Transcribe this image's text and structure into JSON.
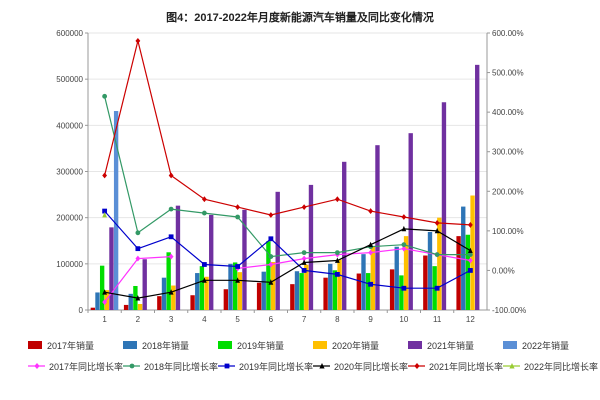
{
  "chart_data": {
    "title": "图4：2017-2022年月度新能源汽车销量及同比变化情况",
    "type": "bar+line",
    "categories": [
      "1",
      "2",
      "3",
      "4",
      "5",
      "6",
      "7",
      "8",
      "9",
      "10",
      "11",
      "12"
    ],
    "y_left": {
      "min": 0,
      "max": 600000,
      "ticks": [
        0,
        100000,
        200000,
        300000,
        400000,
        500000,
        600000
      ],
      "tick_labels": [
        "0",
        "100000",
        "200000",
        "300000",
        "400000",
        "500000",
        "600000"
      ]
    },
    "y_right": {
      "min": -100,
      "max": 600,
      "ticks": [
        -100,
        0,
        100,
        200,
        300,
        400,
        500,
        600
      ],
      "tick_labels": [
        "-100.00%",
        "0.00%",
        "100.00%",
        "200.00%",
        "300.00%",
        "400.00%",
        "500.00%",
        "600.00%"
      ]
    },
    "bar_series": [
      {
        "name": "2017年销量",
        "color": "#c00000",
        "values": [
          5000,
          11000,
          30000,
          32000,
          45000,
          59000,
          56000,
          70000,
          79000,
          88000,
          118000,
          160000
        ]
      },
      {
        "name": "2018年销量",
        "color": "#2e75b6",
        "values": [
          38000,
          35000,
          70000,
          80000,
          100000,
          83000,
          84000,
          100000,
          121000,
          137000,
          169000,
          224000
        ]
      },
      {
        "name": "2019年销量",
        "color": "#00dd00",
        "values": [
          96000,
          52000,
          125000,
          95000,
          103000,
          149000,
          80000,
          86000,
          80000,
          75000,
          95000,
          163000
        ]
      },
      {
        "name": "2020年销量",
        "color": "#ffc000",
        "values": [
          43000,
          13000,
          53000,
          72000,
          82000,
          104000,
          98000,
          109000,
          138000,
          160000,
          200000,
          248000
        ]
      },
      {
        "name": "2021年销量",
        "color": "#7030a0",
        "values": [
          179000,
          110000,
          226000,
          206000,
          217000,
          256000,
          271000,
          321000,
          357000,
          383000,
          450000,
          531000
        ]
      },
      {
        "name": "2022年销量",
        "color": "#5b8fd6",
        "values": [
          431000,
          null,
          null,
          null,
          null,
          null,
          null,
          null,
          null,
          null,
          null,
          null
        ]
      }
    ],
    "line_series": [
      {
        "name": "2017年同比增长率",
        "color": "#ff33ff",
        "marker": "diamond",
        "values": [
          -80,
          30,
          35,
          null,
          5,
          15,
          30,
          40,
          45,
          55,
          40,
          25
        ]
      },
      {
        "name": "2018年同比增长率",
        "color": "#339966",
        "marker": "circle",
        "values": [
          440,
          95,
          155,
          145,
          135,
          35,
          45,
          45,
          60,
          65,
          40,
          40
        ]
      },
      {
        "name": "2019年同比增长率",
        "color": "#0000cc",
        "marker": "square",
        "values": [
          150,
          55,
          85,
          15,
          10,
          80,
          0,
          -10,
          -35,
          -45,
          -45,
          0
        ]
      },
      {
        "name": "2020年同比增长率",
        "color": "#000000",
        "marker": "triangle",
        "values": [
          -55,
          -70,
          -55,
          -25,
          -25,
          -30,
          20,
          25,
          65,
          105,
          100,
          50
        ]
      },
      {
        "name": "2021年同比增长率",
        "color": "#cc0000",
        "marker": "diamond",
        "values": [
          240,
          580,
          240,
          180,
          160,
          140,
          160,
          180,
          150,
          135,
          120,
          115
        ]
      },
      {
        "name": "2022年同比增长率",
        "color": "#99cc33",
        "marker": "triangle",
        "values": [
          140,
          null,
          null,
          null,
          null,
          null,
          null,
          null,
          null,
          null,
          null,
          null
        ]
      }
    ]
  }
}
